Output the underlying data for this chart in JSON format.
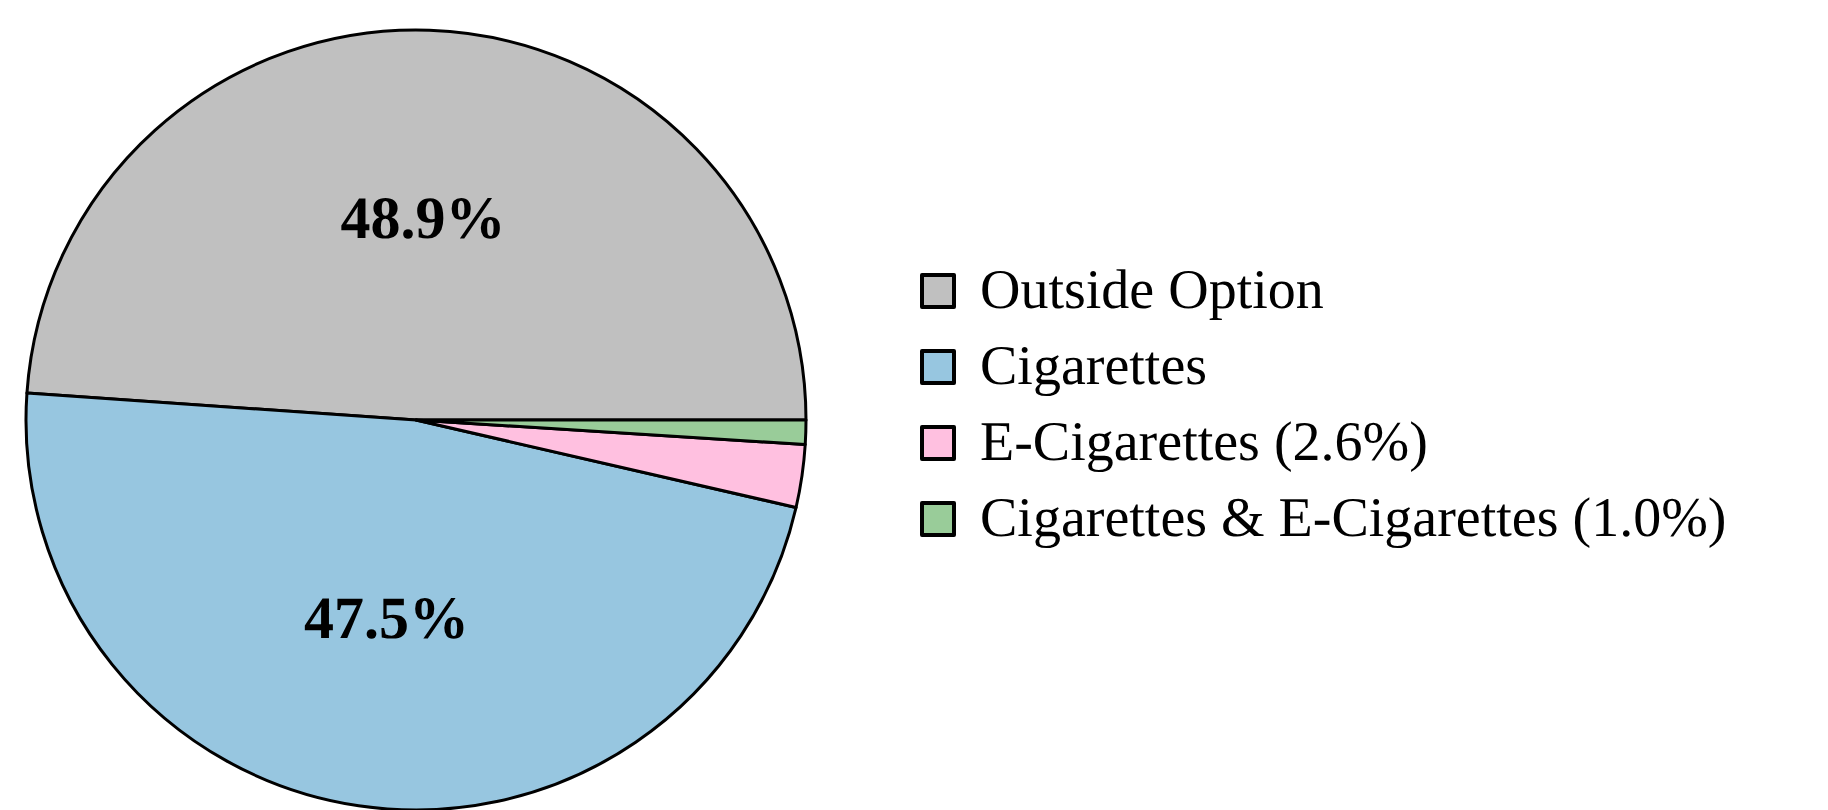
{
  "chart_data": {
    "type": "pie",
    "categories": [
      "Outside Option",
      "Cigarettes",
      "E-Cigarettes (2.6%)",
      "Cigarettes & E-Cigarettes (1.0%)"
    ],
    "values": [
      48.9,
      47.5,
      2.6,
      1.0
    ],
    "colors": [
      "#c0c0c0",
      "#97c6e0",
      "#ffc0e0",
      "#99cc99"
    ],
    "value_labels": [
      "48.9%",
      "47.5%",
      null,
      null
    ],
    "legend": "right"
  }
}
